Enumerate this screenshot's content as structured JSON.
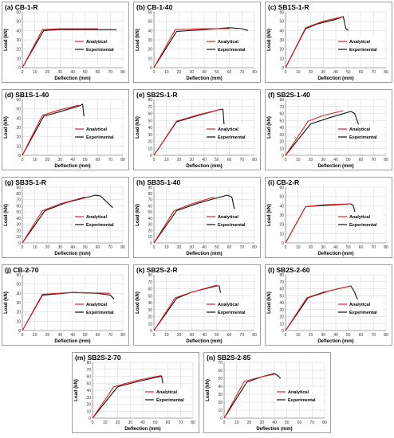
{
  "common": {
    "xlabel": "Deflection (mm)",
    "ylabel": "Load (kN)",
    "legend": [
      "Analytical",
      "Experimental"
    ],
    "legend_position": "right-center",
    "colors": {
      "analytical": "#e02020",
      "experimental": "#111111"
    },
    "grid": true
  },
  "chart_data": [
    {
      "type": "line",
      "title": "(a) CB-1-R",
      "xlim": [
        0,
        80
      ],
      "ylim": [
        0,
        60
      ],
      "xticks": [
        0,
        10,
        20,
        30,
        40,
        50,
        60,
        70,
        80
      ],
      "yticks": [
        0,
        10,
        20,
        30,
        40,
        50,
        60
      ],
      "series": [
        {
          "name": "Analytical",
          "x": [
            0,
            16,
            30,
            60
          ],
          "y": [
            0,
            41,
            42,
            42
          ]
        },
        {
          "name": "Experimental",
          "x": [
            0,
            5,
            17,
            30,
            50,
            65,
            75
          ],
          "y": [
            0,
            12,
            40,
            41,
            41,
            41,
            41
          ]
        }
      ]
    },
    {
      "type": "line",
      "title": "(b) CB-1-40",
      "xlim": [
        0,
        80
      ],
      "ylim": [
        0,
        60
      ],
      "xticks": [
        0,
        10,
        20,
        30,
        40,
        50,
        60,
        70,
        80
      ],
      "yticks": [
        0,
        10,
        20,
        30,
        40,
        50,
        60
      ],
      "series": [
        {
          "name": "Analytical",
          "x": [
            0,
            17,
            40,
            60
          ],
          "y": [
            0,
            41,
            42,
            42
          ]
        },
        {
          "name": "Experimental",
          "x": [
            0,
            6,
            18,
            40,
            60,
            70,
            75
          ],
          "y": [
            0,
            13,
            39,
            41,
            43,
            42,
            40
          ]
        }
      ]
    },
    {
      "type": "line",
      "title": "(c) SB1S-1-R",
      "xlim": [
        0,
        80
      ],
      "ylim": [
        0,
        60
      ],
      "xticks": [
        0,
        10,
        20,
        30,
        40,
        50,
        60,
        70,
        80
      ],
      "yticks": [
        0,
        10,
        20,
        30,
        40,
        50,
        60
      ],
      "series": [
        {
          "name": "Analytical",
          "x": [
            0,
            16,
            30,
            46
          ],
          "y": [
            0,
            43,
            50,
            55
          ]
        },
        {
          "name": "Experimental",
          "x": [
            0,
            16,
            25,
            40,
            46,
            48,
            50
          ],
          "y": [
            0,
            42,
            47,
            52,
            55,
            42,
            40
          ]
        }
      ]
    },
    {
      "type": "line",
      "title": "(d) SB1S-1-40",
      "xlim": [
        0,
        80
      ],
      "ylim": [
        0,
        60
      ],
      "xticks": [
        0,
        10,
        20,
        30,
        40,
        50,
        60,
        70,
        80
      ],
      "yticks": [
        0,
        10,
        20,
        30,
        40,
        50,
        60
      ],
      "series": [
        {
          "name": "Analytical",
          "x": [
            0,
            16,
            30,
            45
          ],
          "y": [
            0,
            43,
            49,
            54
          ]
        },
        {
          "name": "Experimental",
          "x": [
            0,
            17,
            30,
            45,
            48,
            49
          ],
          "y": [
            0,
            42,
            47,
            53,
            55,
            42
          ]
        }
      ]
    },
    {
      "type": "line",
      "title": "(e) SB2S-1-R",
      "xlim": [
        0,
        80
      ],
      "ylim": [
        0,
        80
      ],
      "xticks": [
        0,
        10,
        20,
        30,
        40,
        50,
        60,
        70,
        80
      ],
      "yticks": [
        0,
        10,
        20,
        30,
        40,
        50,
        60,
        70,
        80
      ],
      "series": [
        {
          "name": "Analytical",
          "x": [
            0,
            18,
            35,
            53
          ],
          "y": [
            0,
            49,
            58,
            66
          ]
        },
        {
          "name": "Experimental",
          "x": [
            0,
            18,
            35,
            53,
            55,
            56
          ],
          "y": [
            0,
            48,
            57,
            66,
            66,
            40
          ]
        }
      ]
    },
    {
      "type": "line",
      "title": "(f) SB2S-1-40",
      "xlim": [
        0,
        80
      ],
      "ylim": [
        0,
        80
      ],
      "xticks": [
        0,
        10,
        20,
        30,
        40,
        50,
        60,
        70,
        80
      ],
      "yticks": [
        0,
        10,
        20,
        30,
        40,
        50,
        60,
        70,
        80
      ],
      "series": [
        {
          "name": "Analytical",
          "x": [
            0,
            18,
            30,
            46
          ],
          "y": [
            0,
            49,
            57,
            64
          ]
        },
        {
          "name": "Experimental",
          "x": [
            0,
            20,
            35,
            52,
            55,
            58,
            60
          ],
          "y": [
            0,
            45,
            54,
            63,
            60,
            45,
            40
          ]
        }
      ]
    },
    {
      "type": "line",
      "title": "(g) SB3S-1-R",
      "xlim": [
        0,
        80
      ],
      "ylim": [
        0,
        90
      ],
      "xticks": [
        0,
        10,
        20,
        30,
        40,
        50,
        60,
        70,
        80
      ],
      "yticks": [
        0,
        10,
        20,
        30,
        40,
        50,
        60,
        70,
        80,
        90
      ],
      "series": [
        {
          "name": "Analytical",
          "x": [
            0,
            16,
            30,
            50
          ],
          "y": [
            0,
            52,
            63,
            74
          ]
        },
        {
          "name": "Experimental",
          "x": [
            0,
            18,
            35,
            58,
            62,
            72
          ],
          "y": [
            0,
            52,
            65,
            77,
            76,
            57
          ]
        }
      ]
    },
    {
      "type": "line",
      "title": "(h) SB3S-1-40",
      "xlim": [
        0,
        80
      ],
      "ylim": [
        0,
        90
      ],
      "xticks": [
        0,
        10,
        20,
        30,
        40,
        50,
        60,
        70,
        80
      ],
      "yticks": [
        0,
        10,
        20,
        30,
        40,
        50,
        60,
        70,
        80,
        90
      ],
      "series": [
        {
          "name": "Analytical",
          "x": [
            0,
            16,
            30,
            48
          ],
          "y": [
            0,
            52,
            63,
            74
          ]
        },
        {
          "name": "Experimental",
          "x": [
            0,
            18,
            35,
            58,
            62,
            64
          ],
          "y": [
            0,
            52,
            64,
            77,
            74,
            55
          ]
        }
      ]
    },
    {
      "type": "line",
      "title": "(i) CB-2-R",
      "xlim": [
        0,
        80
      ],
      "ylim": [
        0,
        60
      ],
      "xticks": [
        0,
        10,
        20,
        30,
        40,
        50,
        60,
        70,
        80
      ],
      "yticks": [
        0,
        10,
        20,
        30,
        40,
        50,
        60
      ],
      "series": [
        {
          "name": "Analytical",
          "x": [
            0,
            16,
            30,
            52
          ],
          "y": [
            0,
            39,
            41,
            42
          ]
        },
        {
          "name": "Experimental",
          "x": [
            0,
            16,
            40,
            52,
            54,
            56
          ],
          "y": [
            0,
            39,
            41,
            42,
            40,
            28
          ]
        }
      ]
    },
    {
      "type": "line",
      "title": "(j) CB-2-70",
      "xlim": [
        0,
        80
      ],
      "ylim": [
        0,
        60
      ],
      "xticks": [
        0,
        10,
        20,
        30,
        40,
        50,
        60,
        70,
        80
      ],
      "yticks": [
        0,
        10,
        20,
        30,
        40,
        50,
        60
      ],
      "series": [
        {
          "name": "Analytical",
          "x": [
            0,
            16,
            40,
            70
          ],
          "y": [
            0,
            39,
            41,
            40
          ]
        },
        {
          "name": "Experimental",
          "x": [
            0,
            16,
            40,
            60,
            70,
            73
          ],
          "y": [
            0,
            38,
            41,
            40,
            38,
            34
          ]
        }
      ]
    },
    {
      "type": "line",
      "title": "(k) SB2S-2-R",
      "xlim": [
        0,
        80
      ],
      "ylim": [
        0,
        80
      ],
      "xticks": [
        0,
        10,
        20,
        30,
        40,
        50,
        60,
        70,
        80
      ],
      "yticks": [
        0,
        10,
        20,
        30,
        40,
        50,
        60,
        70,
        80
      ],
      "series": [
        {
          "name": "Analytical",
          "x": [
            0,
            17,
            30,
            50
          ],
          "y": [
            0,
            47,
            55,
            65
          ]
        },
        {
          "name": "Experimental",
          "x": [
            0,
            18,
            30,
            50,
            52,
            53
          ],
          "y": [
            0,
            46,
            55,
            64,
            64,
            54
          ]
        }
      ]
    },
    {
      "type": "line",
      "title": "(l) SB2S-2-60",
      "xlim": [
        0,
        80
      ],
      "ylim": [
        0,
        80
      ],
      "xticks": [
        0,
        10,
        20,
        30,
        40,
        50,
        60,
        70,
        80
      ],
      "yticks": [
        0,
        10,
        20,
        30,
        40,
        50,
        60,
        70,
        80
      ],
      "series": [
        {
          "name": "Analytical",
          "x": [
            0,
            17,
            30,
            52
          ],
          "y": [
            0,
            47,
            55,
            64
          ]
        },
        {
          "name": "Experimental",
          "x": [
            0,
            18,
            35,
            52,
            55,
            60
          ],
          "y": [
            0,
            47,
            57,
            64,
            55,
            33
          ]
        }
      ]
    },
    {
      "type": "line",
      "title": "(m) SB2S-2-70",
      "xlim": [
        0,
        80
      ],
      "ylim": [
        0,
        80
      ],
      "xticks": [
        0,
        10,
        20,
        30,
        40,
        50,
        60,
        70,
        80
      ],
      "yticks": [
        0,
        10,
        20,
        30,
        40,
        50,
        60,
        70,
        80
      ],
      "series": [
        {
          "name": "Analytical",
          "x": [
            0,
            17,
            35,
            55
          ],
          "y": [
            0,
            45,
            54,
            61
          ]
        },
        {
          "name": "Experimental",
          "x": [
            0,
            20,
            35,
            52,
            55,
            56
          ],
          "y": [
            0,
            45,
            52,
            59,
            60,
            50
          ]
        }
      ]
    },
    {
      "type": "line",
      "title": "(n) SB2S-2-85",
      "xlim": [
        0,
        80
      ],
      "ylim": [
        0,
        70
      ],
      "xticks": [
        0,
        10,
        20,
        30,
        40,
        50,
        60,
        70,
        80
      ],
      "yticks": [
        0,
        10,
        20,
        30,
        40,
        50,
        60,
        70
      ],
      "series": [
        {
          "name": "Analytical",
          "x": [
            0,
            16,
            30,
            40
          ],
          "y": [
            0,
            46,
            52,
            55
          ]
        },
        {
          "name": "Experimental",
          "x": [
            0,
            18,
            30,
            40,
            43,
            45
          ],
          "y": [
            0,
            45,
            52,
            56,
            53,
            50
          ]
        }
      ]
    }
  ]
}
